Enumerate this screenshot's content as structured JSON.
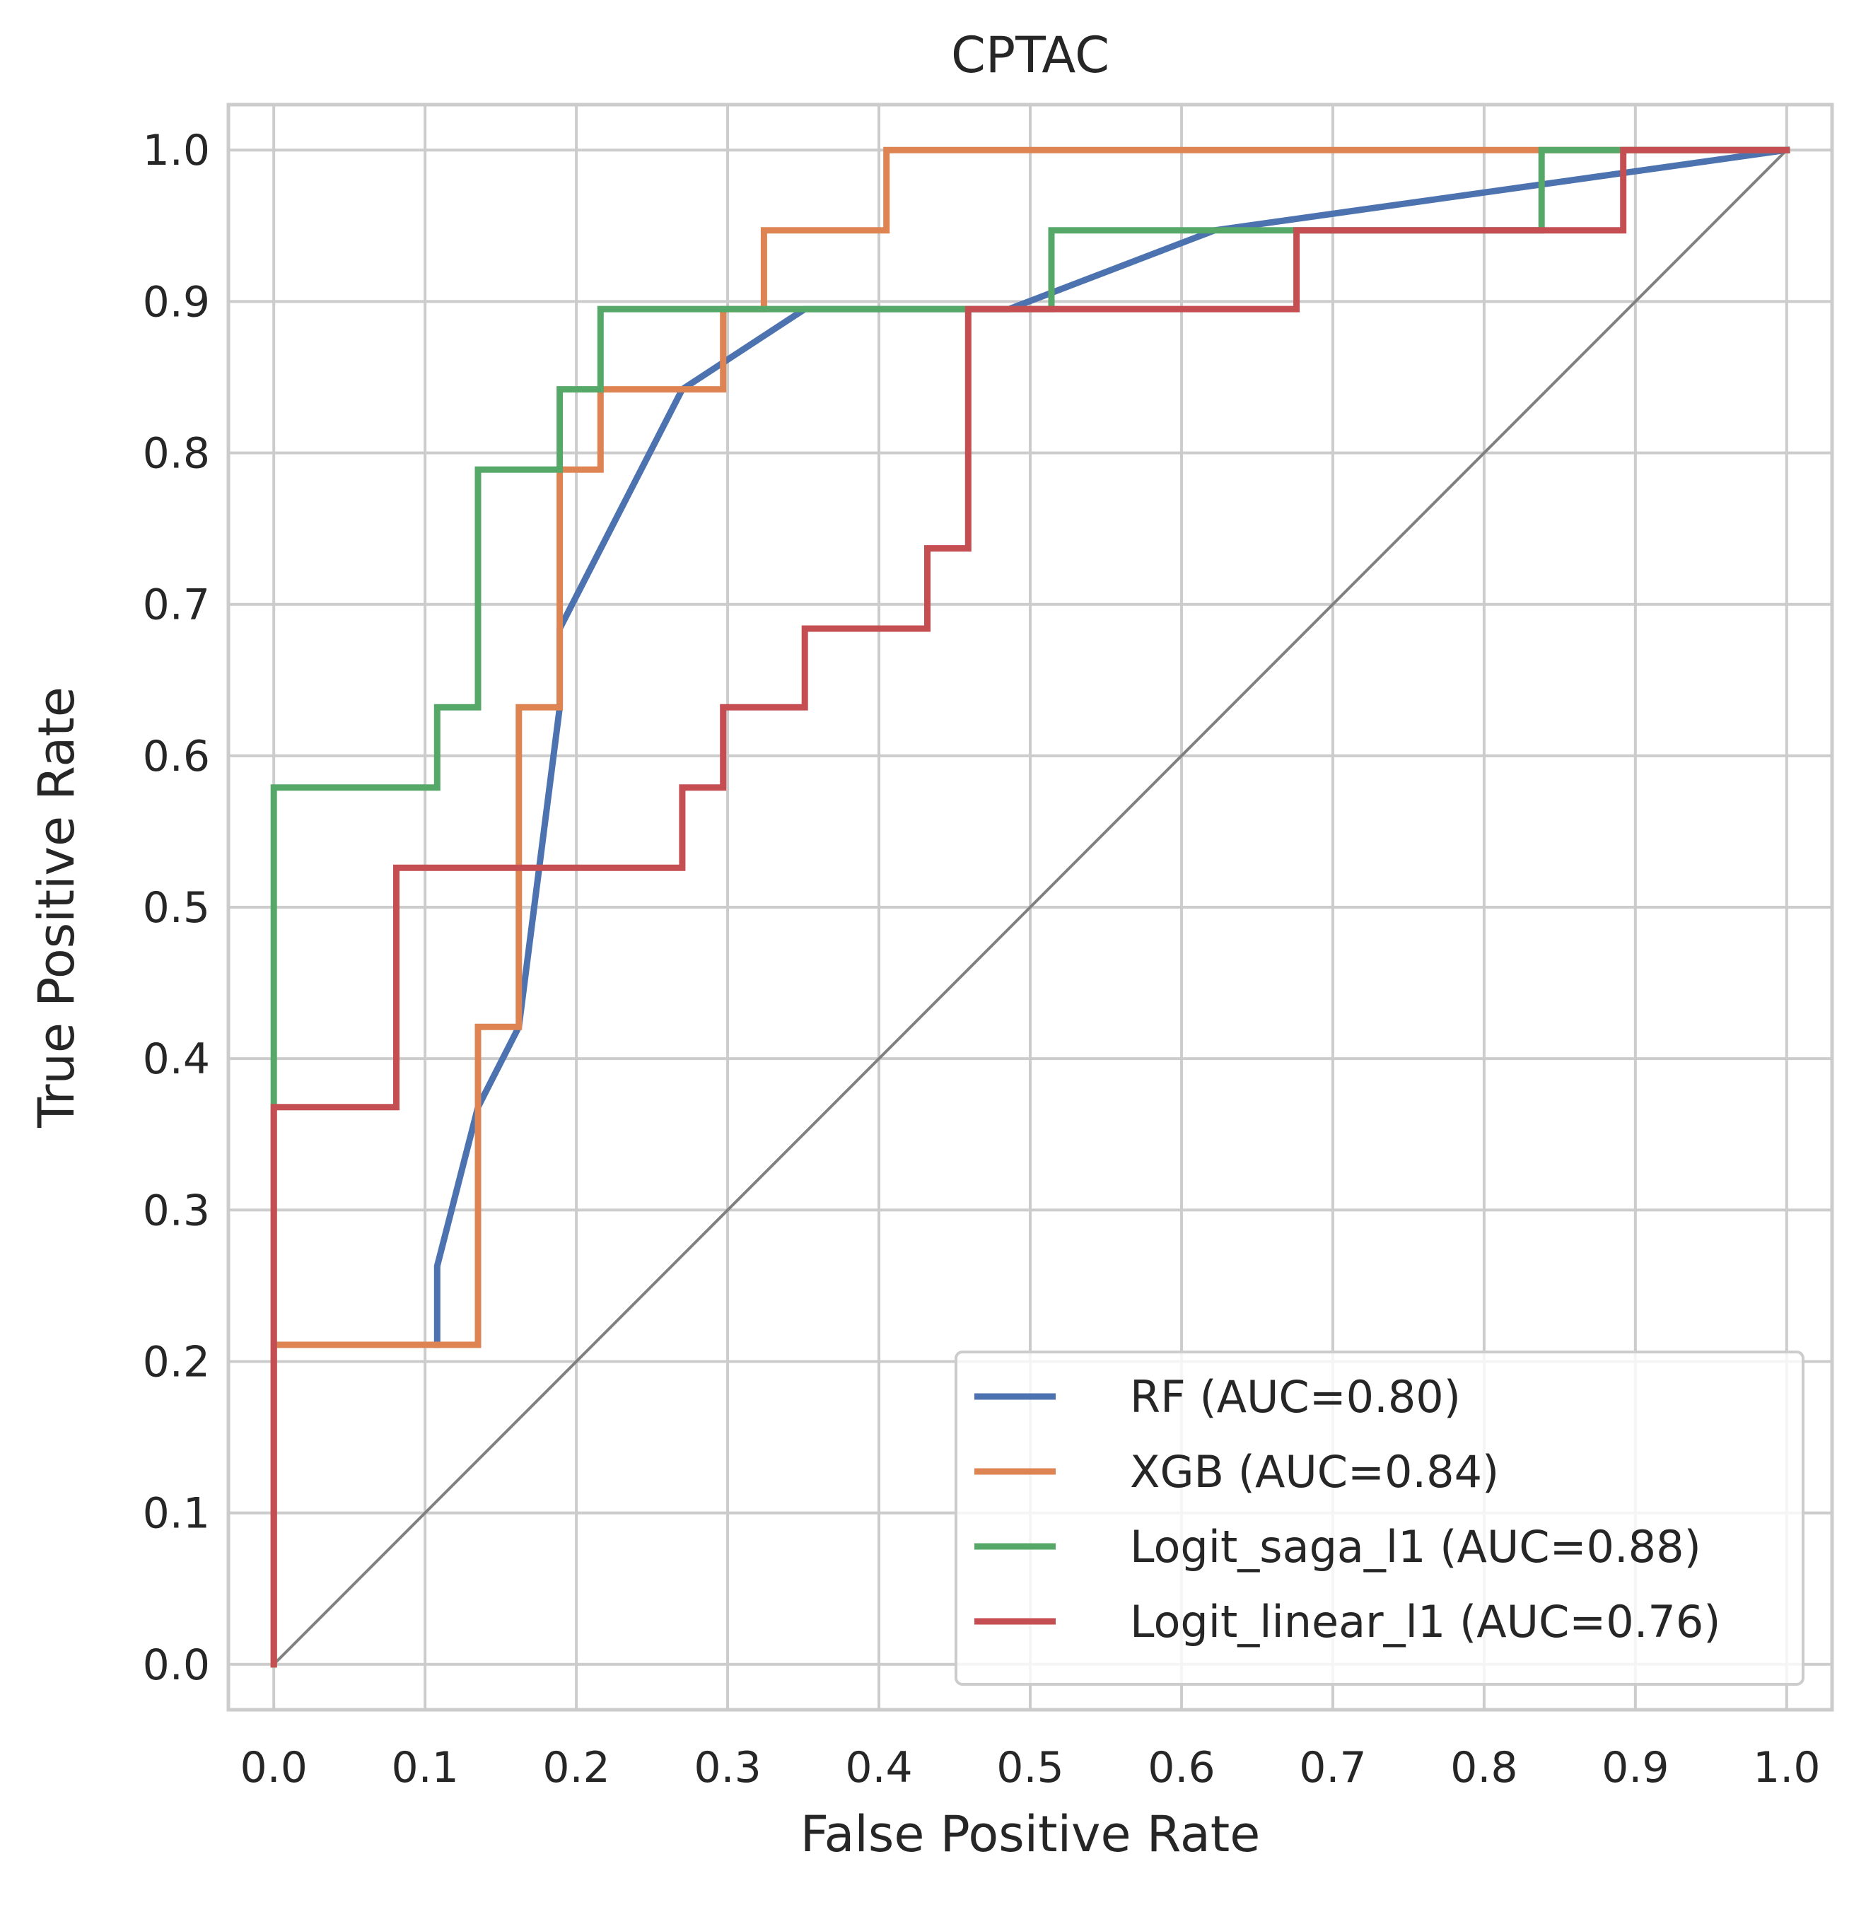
{
  "chart_data": {
    "type": "line",
    "title": "CPTAC",
    "xlabel": "False Positive Rate",
    "ylabel": "True Positive Rate",
    "xlim": [
      -0.03,
      1.03
    ],
    "ylim": [
      -0.03,
      1.03
    ],
    "grid": true,
    "xticks": [
      "0.0",
      "0.1",
      "0.2",
      "0.3",
      "0.4",
      "0.5",
      "0.6",
      "0.7",
      "0.8",
      "0.9",
      "1.0"
    ],
    "yticks": [
      "0.0",
      "0.1",
      "0.2",
      "0.3",
      "0.4",
      "0.5",
      "0.6",
      "0.7",
      "0.8",
      "0.9",
      "1.0"
    ],
    "legend_position": "lower-right",
    "diagonal": {
      "x": [
        0,
        1
      ],
      "y": [
        0,
        1
      ],
      "color": "#808080"
    },
    "series": [
      {
        "name": "RF (AUC=0.80)",
        "color": "#4c72b0",
        "x": [
          0.108,
          0.108,
          0.135,
          0.162,
          0.189,
          0.189,
          0.27,
          0.351,
          0.486,
          0.622,
          1.0
        ],
        "y": [
          0.211,
          0.263,
          0.368,
          0.421,
          0.632,
          0.684,
          0.842,
          0.895,
          0.895,
          0.947,
          1.0
        ]
      },
      {
        "name": "XGB (AUC=0.84)",
        "color": "#dd8452",
        "x": [
          0.0,
          0.0,
          0.135,
          0.135,
          0.162,
          0.162,
          0.189,
          0.189,
          0.216,
          0.216,
          0.297,
          0.297,
          0.324,
          0.324,
          0.405,
          0.405,
          1.0
        ],
        "y": [
          0.0,
          0.211,
          0.211,
          0.421,
          0.421,
          0.632,
          0.632,
          0.789,
          0.789,
          0.842,
          0.842,
          0.895,
          0.895,
          0.947,
          0.947,
          1.0,
          1.0
        ]
      },
      {
        "name": "Logit_saga_l1 (AUC=0.88)",
        "color": "#55a868",
        "x": [
          0.0,
          0.0,
          0.108,
          0.108,
          0.135,
          0.135,
          0.189,
          0.189,
          0.216,
          0.216,
          0.514,
          0.514,
          0.838,
          0.838,
          0.892,
          1.0
        ],
        "y": [
          0.0,
          0.579,
          0.579,
          0.632,
          0.632,
          0.789,
          0.789,
          0.842,
          0.842,
          0.895,
          0.895,
          0.947,
          0.947,
          1.0,
          1.0,
          1.0
        ]
      },
      {
        "name": "Logit_linear_l1 (AUC=0.76)",
        "color": "#c44e52",
        "x": [
          0.0,
          0.0,
          0.081,
          0.081,
          0.27,
          0.27,
          0.297,
          0.297,
          0.351,
          0.351,
          0.432,
          0.432,
          0.459,
          0.459,
          0.676,
          0.676,
          0.892,
          0.892,
          1.0
        ],
        "y": [
          0.0,
          0.368,
          0.368,
          0.526,
          0.526,
          0.579,
          0.579,
          0.632,
          0.632,
          0.684,
          0.684,
          0.737,
          0.737,
          0.895,
          0.895,
          0.947,
          0.947,
          1.0,
          1.0
        ]
      }
    ]
  }
}
